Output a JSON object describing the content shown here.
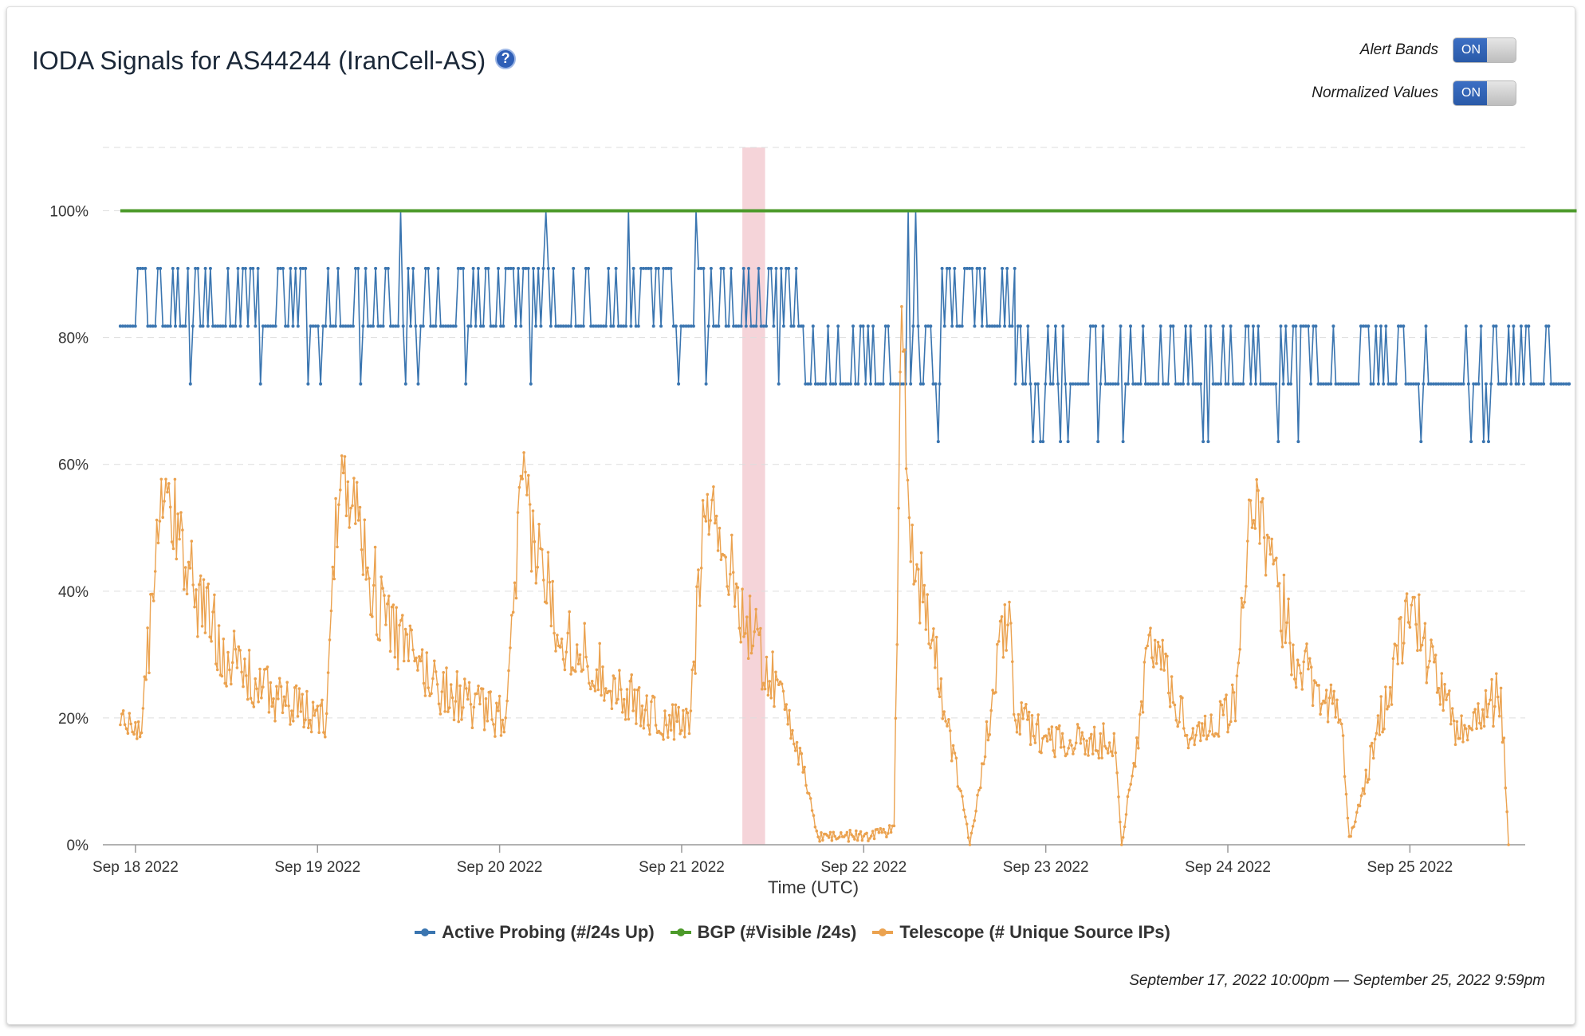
{
  "header": {
    "title": "IODA Signals for AS44244 (IranCell-AS)",
    "help_glyph": "?"
  },
  "controls": {
    "alert_bands": {
      "label": "Alert Bands",
      "state": "ON"
    },
    "normalized_values": {
      "label": "Normalized Values",
      "state": "ON"
    }
  },
  "colors": {
    "active_probing": "#3a75b0",
    "bgp": "#4c9a2a",
    "telescope": "#eba24f",
    "alert_band": "#f2c9cf",
    "grid": "#dddddd"
  },
  "chart_data": {
    "type": "line",
    "xlabel": "Time (UTC)",
    "ylabel": "",
    "x_range": [
      "2022-09-17 22:00",
      "2022-09-25 21:59"
    ],
    "x_plot_range_hours": [
      -2.3,
      185.2
    ],
    "ylim": [
      0,
      110
    ],
    "y_ticks": [
      0,
      20,
      40,
      60,
      80,
      100
    ],
    "y_tick_labels": [
      "0%",
      "20%",
      "40%",
      "60%",
      "80%",
      "100%"
    ],
    "x_tick_labels": [
      "Sep 18 2022",
      "Sep 19 2022",
      "Sep 20 2022",
      "Sep 21 2022",
      "Sep 22 2022",
      "Sep 23 2022",
      "Sep 24 2022",
      "Sep 25 2022"
    ],
    "x_ticks": [
      "2022-09-18",
      "2022-09-19",
      "2022-09-20",
      "2022-09-21",
      "2022-09-22",
      "2022-09-23",
      "2022-09-24",
      "2022-09-25"
    ],
    "grid": true,
    "legend_position": "bottom-center",
    "alert_bands": [
      {
        "start": "2022-09-21 08:00",
        "end": "2022-09-21 11:00"
      }
    ],
    "series": [
      {
        "name": "Active Probing (#/24s Up)",
        "color": "#3a75b0",
        "levels": [
          63.6,
          72.7,
          81.8,
          90.9,
          100
        ],
        "segments": [
          {
            "start": "2022-09-17 22:00",
            "end": "2022-09-21 16:00",
            "base": 81.8,
            "spike": 90.9,
            "dip": 72.7
          },
          {
            "start": "2022-09-21 16:00",
            "end": "2022-09-22 10:00",
            "base": 72.7,
            "spike": 81.8,
            "dip": 63.6
          },
          {
            "start": "2022-09-22 10:00",
            "end": "2022-09-22 20:00",
            "base": 81.8,
            "spike": 90.9,
            "dip": 72.7
          },
          {
            "start": "2022-09-22 20:00",
            "end": "2022-09-25 21:00",
            "base": 72.7,
            "spike": 81.8,
            "dip": 63.6
          }
        ],
        "max_spikes": [
          "2022-09-19 11:00",
          "2022-09-20 06:00",
          "2022-09-20 17:00",
          "2022-09-21 02:00",
          "2022-09-22 06:00",
          "2022-09-22 07:00"
        ]
      },
      {
        "name": "BGP (#Visible /24s)",
        "color": "#4c9a2a",
        "x": [
          "2022-09-17 22:00",
          "2022-09-25 21:59"
        ],
        "y": [
          100,
          100
        ]
      },
      {
        "name": "Telescope (# Unique Source IPs)",
        "color": "#eba24f",
        "x": [
          "2022-09-17 22:00",
          "2022-09-17 23:00",
          "2022-09-18 01:00",
          "2022-09-18 02:00",
          "2022-09-18 03:00",
          "2022-09-18 04:00",
          "2022-09-18 06:00",
          "2022-09-18 08:00",
          "2022-09-18 12:00",
          "2022-09-18 16:00",
          "2022-09-18 22:00",
          "2022-09-19 01:00",
          "2022-09-19 02:00",
          "2022-09-19 03:00",
          "2022-09-19 04:00",
          "2022-09-19 06:00",
          "2022-09-19 08:00",
          "2022-09-19 12:00",
          "2022-09-19 16:00",
          "2022-09-19 22:00",
          "2022-09-20 01:00",
          "2022-09-20 02:00",
          "2022-09-20 03:00",
          "2022-09-20 04:00",
          "2022-09-20 06:00",
          "2022-09-20 08:00",
          "2022-09-20 12:00",
          "2022-09-20 16:00",
          "2022-09-20 22:00",
          "2022-09-21 01:00",
          "2022-09-21 02:00",
          "2022-09-21 03:00",
          "2022-09-21 06:00",
          "2022-09-21 09:00",
          "2022-09-21 12:00",
          "2022-09-21 14:00",
          "2022-09-21 18:00",
          "2022-09-22 00:00",
          "2022-09-22 04:00",
          "2022-09-22 05:00",
          "2022-09-22 06:00",
          "2022-09-22 08:00",
          "2022-09-22 10:00",
          "2022-09-22 14:00",
          "2022-09-22 19:00",
          "2022-09-22 20:00",
          "2022-09-23 00:00",
          "2022-09-23 06:00",
          "2022-09-23 09:00",
          "2022-09-23 10:00",
          "2022-09-23 14:00",
          "2022-09-23 19:00",
          "2022-09-24 01:00",
          "2022-09-24 02:00",
          "2022-09-24 03:00",
          "2022-09-24 06:00",
          "2022-09-24 09:00",
          "2022-09-24 15:00",
          "2022-09-24 16:00",
          "2022-09-25 00:00",
          "2022-09-25 06:00",
          "2022-09-25 10:00",
          "2022-09-25 12:00",
          "2022-09-25 13:00"
        ],
        "y": [
          20,
          19,
          20,
          36,
          50,
          55,
          48,
          40,
          30,
          25,
          21,
          20,
          40,
          62,
          58,
          48,
          38,
          30,
          25,
          21,
          20,
          40,
          57,
          50,
          42,
          34,
          29,
          24,
          19,
          19,
          35,
          58,
          44,
          34,
          26,
          22,
          1,
          1,
          2,
          90,
          50,
          38,
          26,
          0,
          38,
          20,
          17,
          16,
          17,
          0,
          33,
          17,
          22,
          40,
          55,
          42,
          30,
          20,
          0,
          38,
          18,
          21,
          24,
          0
        ]
      }
    ]
  },
  "legend": {
    "items": [
      {
        "label": "Active Probing (#/24s Up)",
        "color": "#3a75b0"
      },
      {
        "label": "BGP (#Visible /24s)",
        "color": "#4c9a2a"
      },
      {
        "label": "Telescope (# Unique Source IPs)",
        "color": "#eba24f"
      }
    ]
  },
  "footer": {
    "date_range": "September 17, 2022 10:00pm — September 25, 2022 9:59pm"
  }
}
